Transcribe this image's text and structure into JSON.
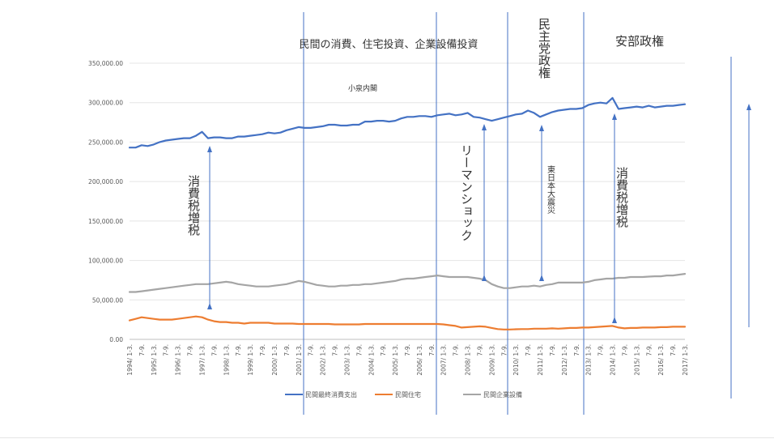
{
  "chart_data": {
    "type": "line",
    "title": "",
    "xlabel": "",
    "ylabel": "",
    "ylim": [
      0,
      350000
    ],
    "yticks": [
      "0.00",
      "50,000.00",
      "100,000.00",
      "150,000.00",
      "200,000.00",
      "250,000.00",
      "300,000.00",
      "350,000.00"
    ],
    "grid": true,
    "legend_position": "bottom",
    "x_start_year": 1994,
    "x_end_year": 2017,
    "x_labels": [
      "1994/ 1-3.",
      "7-9.",
      "1995/ 1-3.",
      "7-9.",
      "1996/ 1-3.",
      "7-9.",
      "1997/ 1-3.",
      "7-9.",
      "1998/ 1-3.",
      "7-9.",
      "1999/ 1-3.",
      "7-9.",
      "2000/ 1-3.",
      "7-9.",
      "2001/ 1-3.",
      "7-9.",
      "2002/ 1-3.",
      "7-9.",
      "2003/ 1-3.",
      "7-9.",
      "2004/ 1-3.",
      "7-9.",
      "2005/ 1-3.",
      "7-9.",
      "2006/ 1-3.",
      "7-9.",
      "2007/ 1-3.",
      "7-9.",
      "2008/ 1-3.",
      "7-9.",
      "2009/ 1-3.",
      "7-9.",
      "2010/ 1-3.",
      "7-9.",
      "2011/ 1-3.",
      "7-9.",
      "2012/ 1-3.",
      "7-9.",
      "2013/ 1-3.",
      "7-9.",
      "2014/ 1-3.",
      "7-9.",
      "2015/ 1-3.",
      "7-9.",
      "2016/ 1-3.",
      "7-9.",
      "2017/ 1-3."
    ],
    "series": [
      {
        "name": "民間最終消費支出",
        "color": "#4472c4",
        "values": [
          243000,
          243000,
          246000,
          245000,
          247000,
          250000,
          252000,
          253000,
          254000,
          255000,
          255000,
          258000,
          263000,
          255000,
          256000,
          256000,
          255000,
          255000,
          257000,
          257000,
          258000,
          259000,
          260000,
          262000,
          261000,
          262000,
          265000,
          267000,
          269000,
          268000,
          268000,
          269000,
          270000,
          272000,
          272000,
          271000,
          271000,
          272000,
          272000,
          276000,
          276000,
          277000,
          277000,
          276000,
          277000,
          280000,
          282000,
          282000,
          283000,
          283000,
          282000,
          284000,
          285000,
          286000,
          284000,
          285000,
          287000,
          282000,
          281000,
          279000,
          277000,
          279000,
          281000,
          283000,
          285000,
          286000,
          290000,
          287000,
          282000,
          285000,
          288000,
          290000,
          291000,
          292000,
          292000,
          293000,
          297000,
          299000,
          300000,
          299000,
          306000,
          292000,
          293000,
          294000,
          295000,
          294000,
          296000,
          294000,
          295000,
          296000,
          296000,
          297000,
          298000
        ]
      },
      {
        "name": "民間住宅",
        "color": "#ed7d31",
        "values": [
          24000,
          26000,
          28000,
          27000,
          26000,
          25000,
          25000,
          25000,
          26000,
          27000,
          28000,
          29000,
          28000,
          25000,
          23000,
          22000,
          22000,
          21000,
          21000,
          20000,
          21000,
          21000,
          21000,
          21000,
          20000,
          20000,
          20000,
          20000,
          19500,
          19500,
          19500,
          19500,
          19500,
          19500,
          19000,
          19000,
          19000,
          19000,
          19000,
          19500,
          19500,
          19500,
          19500,
          19500,
          19500,
          19500,
          19500,
          19500,
          19500,
          19500,
          19500,
          19500,
          19000,
          18000,
          17000,
          15000,
          15500,
          16000,
          16500,
          16000,
          14500,
          13000,
          12500,
          12500,
          12800,
          13000,
          13000,
          13500,
          13500,
          13500,
          14000,
          13500,
          14000,
          14500,
          14500,
          15000,
          15000,
          15500,
          16000,
          16500,
          17000,
          15000,
          14000,
          14500,
          14500,
          15000,
          15000,
          15000,
          15500,
          15500,
          16000,
          16000,
          16000
        ]
      },
      {
        "name": "民間企業設備",
        "color": "#a5a5a5",
        "values": [
          60000,
          60000,
          61000,
          62000,
          63000,
          64000,
          65000,
          66000,
          67000,
          68000,
          69000,
          70000,
          70000,
          70000,
          71000,
          72000,
          73000,
          72000,
          70000,
          69000,
          68000,
          67000,
          67000,
          67000,
          68000,
          69000,
          70000,
          72000,
          74000,
          73000,
          71000,
          69000,
          68000,
          67000,
          67000,
          68000,
          68000,
          69000,
          69000,
          70000,
          70000,
          71000,
          72000,
          73000,
          74000,
          76000,
          77000,
          77000,
          78000,
          79000,
          80000,
          81000,
          80000,
          79000,
          79000,
          79000,
          79000,
          78000,
          77000,
          75000,
          70000,
          67000,
          65000,
          65000,
          66000,
          67000,
          67000,
          68000,
          67000,
          69000,
          70000,
          72000,
          72000,
          72000,
          72000,
          72000,
          73000,
          75000,
          76000,
          77000,
          77000,
          78000,
          78000,
          79000,
          79000,
          79000,
          79500,
          80000,
          80000,
          81000,
          81000,
          82000,
          83000
        ]
      }
    ],
    "annotations": {
      "era_top": "民間の消費、住宅投資、企業設備投資",
      "koizumi": "小泉内閣",
      "minshu": "民主党政権",
      "abe": "安部政権",
      "tax_1997": "消費税増税",
      "lehman": "リーマンショック",
      "quake": "東日本大震災",
      "tax_2014": "消費税増税"
    }
  }
}
